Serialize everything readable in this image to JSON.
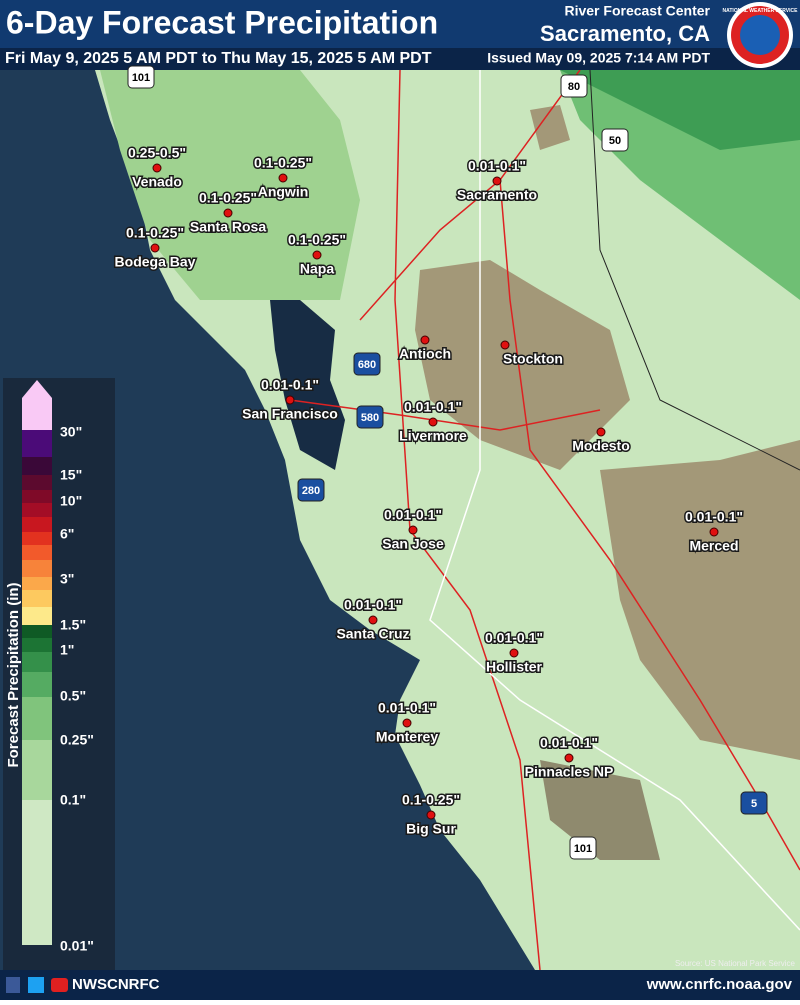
{
  "header": {
    "title": "6-Day Forecast Precipitation",
    "subtitle": "Fri May 9, 2025 5 AM PDT to Thu May 15, 2025 5 AM PDT",
    "issued": "Issued May 09, 2025 7:14 AM PDT",
    "office_line1": "River Forecast Center",
    "office_line2": "Sacramento, CA",
    "logo_text": "NATIONAL WEATHER SERVICE"
  },
  "legend": {
    "title": "Forecast Precipitation (in)",
    "labels": [
      "30\"",
      "15\"",
      "10\"",
      "6\"",
      "3\"",
      "1.5\"",
      "1\"",
      "0.5\"",
      "0.25\"",
      "0.1\"",
      "0.01\""
    ],
    "colors": [
      "#f9c9f5",
      "#4b0b78",
      "#3a0838",
      "#5c0a2e",
      "#7f0a28",
      "#a30d26",
      "#c8171f",
      "#e2321f",
      "#f25a2b",
      "#f7833a",
      "#fba84a",
      "#fdc95f",
      "#fde98a",
      "#0f5a25",
      "#1c7434",
      "#34904a",
      "#55ab62",
      "#80c47c",
      "#a8d79c",
      "#cfe8c4"
    ]
  },
  "cities": [
    {
      "name": "Venado",
      "forecast": "0.25-0.5\""
    },
    {
      "name": "Angwin",
      "forecast": "0.1-0.25\""
    },
    {
      "name": "Santa Rosa",
      "forecast": "0.1-0.25\""
    },
    {
      "name": "Bodega Bay",
      "forecast": "0.1-0.25\""
    },
    {
      "name": "Napa",
      "forecast": "0.1-0.25\""
    },
    {
      "name": "Sacramento",
      "forecast": "0.01-0.1\""
    },
    {
      "name": "Antioch"
    },
    {
      "name": "Stockton"
    },
    {
      "name": "Modesto"
    },
    {
      "name": "San Francisco",
      "forecast": "0.01-0.1\""
    },
    {
      "name": "Livermore",
      "forecast": "0.01-0.1\""
    },
    {
      "name": "Merced",
      "forecast": "0.01-0.1\""
    },
    {
      "name": "San Jose",
      "forecast": "0.01-0.1\""
    },
    {
      "name": "Santa Cruz",
      "forecast": "0.01-0.1\""
    },
    {
      "name": "Hollister",
      "forecast": "0.01-0.1\""
    },
    {
      "name": "Monterey",
      "forecast": "0.01-0.1\""
    },
    {
      "name": "Pinnacles NP",
      "forecast": "0.01-0.1\""
    },
    {
      "name": "Big Sur",
      "forecast": "0.1-0.25\""
    }
  ],
  "shields": [
    "101",
    "80",
    "50",
    "680",
    "580",
    "280",
    "5",
    "101"
  ],
  "footer": {
    "social": "NWSCNRFC",
    "url": "www.cnrfc.noaa.gov",
    "source": "Source: US National Park Service"
  }
}
